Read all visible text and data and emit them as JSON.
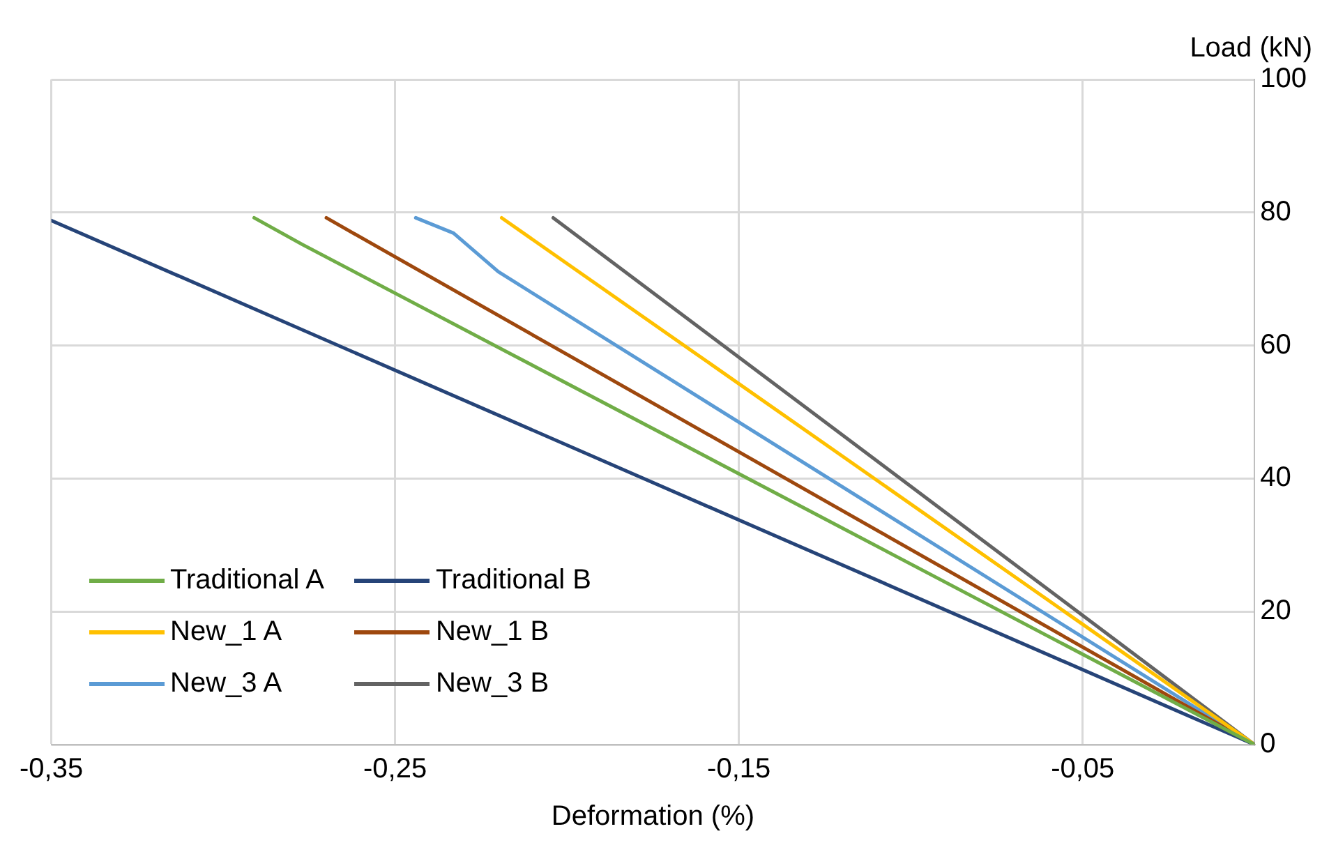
{
  "chart_data": {
    "type": "line",
    "xlabel": "Deformation (%)",
    "ylabel": "Load (kN)",
    "xlim": [
      -0.35,
      0
    ],
    "xticks": [
      {
        "value": -0.35,
        "label": "-0,35"
      },
      {
        "value": -0.25,
        "label": "-0,25"
      },
      {
        "value": -0.15,
        "label": "-0,15"
      },
      {
        "value": -0.05,
        "label": "-0,05"
      }
    ],
    "ylim": [
      0,
      100
    ],
    "yticks": [
      0,
      20,
      40,
      60,
      80,
      100
    ],
    "grid": true,
    "legend": "bottom left",
    "marker": "none",
    "line_style": "solid",
    "series": [
      {
        "name": "Traditional A",
        "color": "#70ad47",
        "x": [
          -0.291,
          -0.277,
          0
        ],
        "values": [
          79.2,
          75.2,
          0
        ]
      },
      {
        "name": "Traditional B",
        "color": "#264478",
        "x": [
          -0.35,
          0
        ],
        "values": [
          78.8,
          0
        ]
      },
      {
        "name": "New_1 A",
        "color": "#ffc000",
        "x": [
          -0.219,
          0
        ],
        "values": [
          79.2,
          0
        ]
      },
      {
        "name": "New_1 B",
        "color": "#9e480e",
        "x": [
          -0.27,
          0
        ],
        "values": [
          79.2,
          0
        ]
      },
      {
        "name": "New_3 A",
        "color": "#5b9bd5",
        "x": [
          -0.244,
          -0.233,
          -0.22,
          0
        ],
        "values": [
          79.2,
          76.9,
          71.1,
          0
        ]
      },
      {
        "name": "New_3 B",
        "color": "#636363",
        "x": [
          -0.204,
          0
        ],
        "values": [
          79.2,
          0
        ]
      }
    ]
  }
}
